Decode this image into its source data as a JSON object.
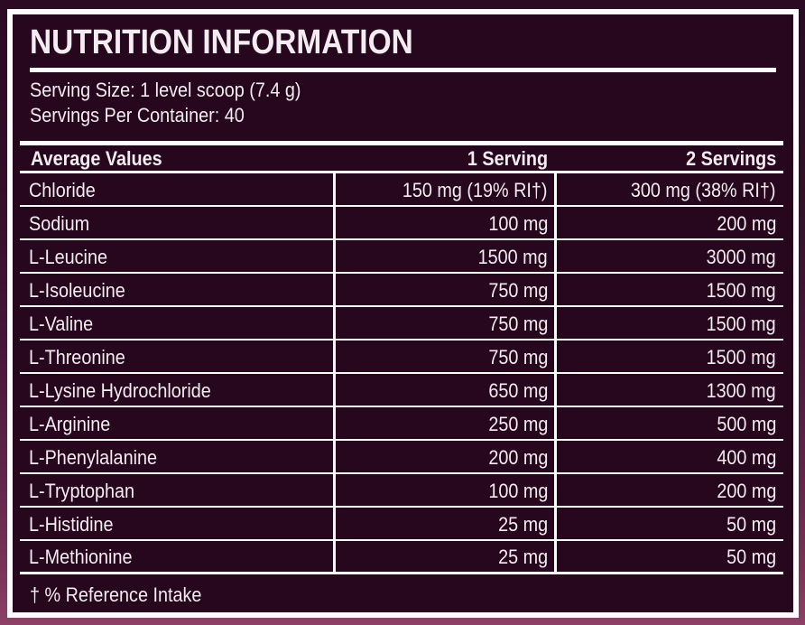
{
  "label": {
    "title": "NUTRITION INFORMATION",
    "serving_size": "Serving Size: 1 level scoop (7.4 g)",
    "servings_per_container": "Servings Per Container: 40",
    "footnote": "† % Reference Intake"
  },
  "table": {
    "headers": [
      "Average Values",
      "1 Serving",
      "2 Servings"
    ],
    "rows": [
      {
        "name": "Chloride",
        "serving1": "150 mg (19% RI†)",
        "serving2": "300 mg (38% RI†)"
      },
      {
        "name": "Sodium",
        "serving1": "100 mg",
        "serving2": "200 mg"
      },
      {
        "name": "L-Leucine",
        "serving1": "1500 mg",
        "serving2": "3000 mg"
      },
      {
        "name": "L-Isoleucine",
        "serving1": "750 mg",
        "serving2": "1500 mg"
      },
      {
        "name": "L-Valine",
        "serving1": "750 mg",
        "serving2": "1500 mg"
      },
      {
        "name": "L-Threonine",
        "serving1": "750 mg",
        "serving2": "1500 mg"
      },
      {
        "name": "L-Lysine Hydrochloride",
        "serving1": "650 mg",
        "serving2": "1300 mg"
      },
      {
        "name": "L-Arginine",
        "serving1": "250 mg",
        "serving2": "500 mg"
      },
      {
        "name": "L-Phenylalanine",
        "serving1": "200 mg",
        "serving2": "400 mg"
      },
      {
        "name": "L-Tryptophan",
        "serving1": "100 mg",
        "serving2": "200 mg"
      },
      {
        "name": "L-Histidine",
        "serving1": "25 mg",
        "serving2": "50 mg"
      },
      {
        "name": "L-Methionine",
        "serving1": "25 mg",
        "serving2": "50 mg"
      }
    ]
  },
  "colors": {
    "background_top": "#2c0a24",
    "background_bottom": "#8e4066",
    "label_background": "#26071d",
    "border": "#fdfcfd",
    "text": "#f3ecf1"
  }
}
